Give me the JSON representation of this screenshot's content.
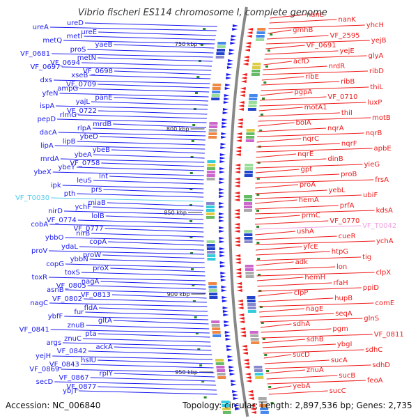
{
  "title": "Vibrio fischeri ES114 chromosome I, complete genome",
  "accession": "Accession: NC_006840",
  "topology": "Topology: circular; Length: 2,897,536 bp; Genes: 2,735",
  "colors": {
    "left_strand": "#1a1aee",
    "right_strand": "#ee1a1a",
    "left_highlight": "#55ccee",
    "right_highlight": "#f0a0e0",
    "backbone": "#888888",
    "tick": "#2a8a2a"
  },
  "kbp_marks": [
    "750 kbp",
    "800 kbp",
    "850 kbp",
    "900 kbp",
    "950 kbp"
  ],
  "left_labels": [
    "ureD",
    "ureA",
    "ureE",
    "metI",
    "metQ",
    "yaeB",
    "proS",
    "VF_0681",
    "metN",
    "VF_0694",
    "VF_0697",
    "VF_0698",
    "xseB",
    "dxs",
    "VF_0709",
    "ampG",
    "yfeN",
    "panE",
    "yajL",
    "ispA",
    "VF_0722",
    "rlmG",
    "pepD",
    "mrdB",
    "rlpA",
    "dacA",
    "ybeD",
    "lipB",
    "lipA",
    "ybeB",
    "ybeA",
    "mrdA",
    "VF_0758",
    "ybeY",
    "ybeX",
    "lnt",
    "leuS",
    "ipk",
    "prs",
    "pth",
    "VF_T0030",
    "miaB",
    "ychF",
    "nirD",
    "lolB",
    "VF_0774",
    "cobA",
    "VF_0777",
    "nirB",
    "ybbO",
    "copA",
    "ydaL",
    "proV",
    "proW",
    "ybbN",
    "copG",
    "proX",
    "toxS",
    "toxR",
    "nagA",
    "VF_0805",
    "asnB",
    "VF_0813",
    "VF_0802",
    "nagC",
    "fldA",
    "fur",
    "ybfF",
    "gltA",
    "znuB",
    "VF_0841",
    "pta",
    "znuC",
    "args",
    "ackA",
    "VF_0842",
    "yejH",
    "hsIU",
    "VF_0843",
    "VF_0869",
    "rplY",
    "VF_0867",
    "secD",
    "VF_0877",
    "ybjT"
  ],
  "right_labels": [
    "nanE",
    "nanK",
    "yhcH",
    "gmhB",
    "VF_2595",
    "yejB",
    "VF_0691",
    "yejE",
    "glyA",
    "acfD",
    "nrdR",
    "ribD",
    "ribE",
    "ribB",
    "thiL",
    "pgpA",
    "VF_0710",
    "luxP",
    "motA1",
    "thiI",
    "motB",
    "bolA",
    "nqrA",
    "nqrB",
    "nqrC",
    "nqrF",
    "apbE",
    "nqrE",
    "dinB",
    "yieG",
    "gpt",
    "proB",
    "frsA",
    "proA",
    "yebL",
    "ubiF",
    "hemA",
    "prfA",
    "kdsA",
    "prmC",
    "VF_0770",
    "VF_T0042",
    "ushA",
    "cueR",
    "ychA",
    "yfcE",
    "htpG",
    "tig",
    "adk",
    "lon",
    "clpX",
    "hemH",
    "rfaH",
    "ppiD",
    "clpP",
    "hupB",
    "comE",
    "nagE",
    "seqA",
    "glnS",
    "sdhA",
    "pgm",
    "VF_0811",
    "sdhB",
    "ybgI",
    "sdhC",
    "sucD",
    "sucA",
    "sdhD",
    "znuA",
    "sucB",
    "feoA",
    "yebA",
    "sucC"
  ]
}
